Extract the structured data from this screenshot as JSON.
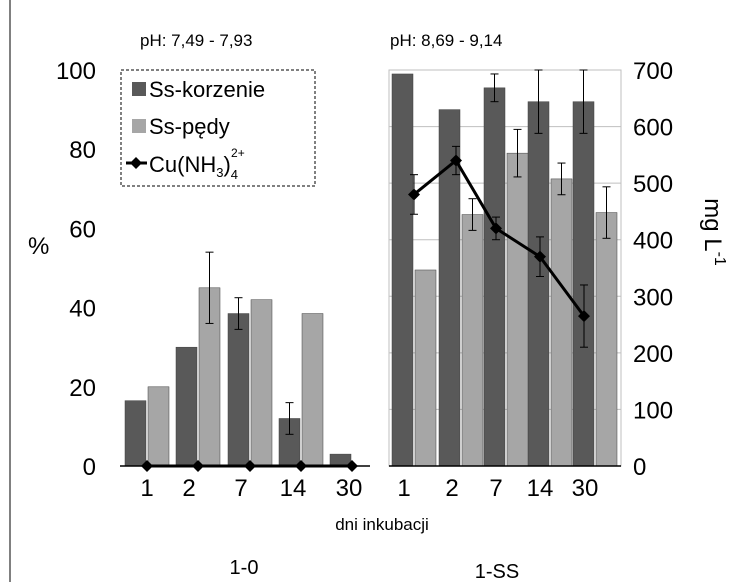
{
  "chart_data": [
    {
      "type": "bar",
      "group_label": "1-0",
      "ph_label": "pH: 7,49 - 7,93",
      "categories": [
        "1",
        "2",
        "7",
        "14",
        "30"
      ],
      "xlabel": "dni inkubacji",
      "ylabel": "%",
      "ylim": [
        0,
        100
      ],
      "y_ticks": [
        "0",
        "20",
        "40",
        "60",
        "80",
        "100"
      ],
      "grid": false,
      "series": [
        {
          "name": "Ss-korzenie",
          "color": "#595959",
          "values": [
            16.5,
            30,
            38.5,
            12,
            3
          ],
          "errors": [
            null,
            null,
            4,
            4,
            null
          ]
        },
        {
          "name": "Ss-pędy",
          "color": "#a6a6a6",
          "values": [
            20,
            45,
            42,
            38.5,
            null
          ],
          "errors": [
            null,
            9,
            null,
            null,
            null
          ]
        },
        {
          "name": "Cu(NH3)4 2+",
          "type": "line",
          "color": "#000000",
          "values": [
            0,
            0,
            0,
            0,
            0
          ]
        }
      ]
    },
    {
      "type": "bar",
      "group_label": "1-SS",
      "ph_label": "pH: 8,69 - 9,14",
      "categories": [
        "1",
        "2",
        "7",
        "14",
        "30"
      ],
      "y2label": "mg L-1",
      "y2lim": [
        0,
        700
      ],
      "y2_ticks": [
        "0",
        "100",
        "200",
        "300",
        "400",
        "500",
        "600",
        "700"
      ],
      "grid": true,
      "series": [
        {
          "name": "Ss-korzenie",
          "color": "#595959",
          "values": [
            99,
            90,
            95.5,
            92,
            92
          ],
          "errors": [
            null,
            null,
            3.5,
            8,
            8
          ]
        },
        {
          "name": "Ss-pędy",
          "color": "#a6a6a6",
          "values": [
            49.5,
            63.5,
            79,
            72.5,
            64
          ],
          "errors": [
            null,
            4,
            6,
            4,
            6.5
          ]
        },
        {
          "name": "Cu(NH3)4 2+",
          "type": "line",
          "axis": "right",
          "color": "#000000",
          "values": [
            480,
            540,
            420,
            370,
            265
          ],
          "errors": [
            35,
            25,
            20,
            35,
            55
          ]
        }
      ]
    }
  ],
  "legend": {
    "position": "top-left",
    "items": [
      {
        "label": "Ss-korzenie",
        "color": "#595959",
        "kind": "bar"
      },
      {
        "label": "Ss-pędy",
        "color": "#a6a6a6",
        "kind": "bar"
      },
      {
        "label": "Cu(NH",
        "sub": "3",
        "close": ")",
        "sub2": "4",
        "sup": "2+",
        "kind": "line",
        "color": "#000000"
      }
    ]
  },
  "labels": {
    "y_left": "%",
    "y_right": "mg L",
    "y_right_sup": "-1",
    "x_caption": "dni inkubacji",
    "group_left": "1-0",
    "group_right": "1-SS",
    "ph_left": "pH: 7,49 - 7,93",
    "ph_right": "pH: 8,69 - 9,14"
  }
}
